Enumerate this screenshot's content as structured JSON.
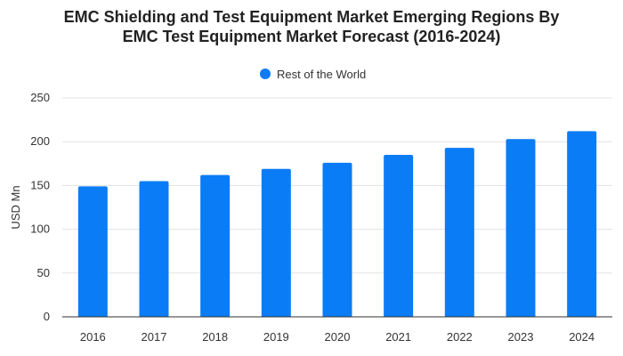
{
  "chart_data": {
    "type": "bar",
    "title_lines": [
      "EMC Shielding and Test Equipment Market Emerging Regions By",
      "EMC Test Equipment Market Forecast (2016-2024)"
    ],
    "xlabel": "",
    "ylabel": "USD Mn",
    "categories": [
      "2016",
      "2017",
      "2018",
      "2019",
      "2020",
      "2021",
      "2022",
      "2023",
      "2024"
    ],
    "series": [
      {
        "name": "Rest of the World",
        "values": [
          149,
          155,
          162,
          169,
          176,
          185,
          193,
          203,
          212
        ],
        "color": "#0A7CF5"
      }
    ],
    "ylim": [
      0,
      250
    ],
    "yticks": [
      0,
      50,
      100,
      150,
      200,
      250
    ],
    "grid": true,
    "legend_position": "top-center"
  }
}
